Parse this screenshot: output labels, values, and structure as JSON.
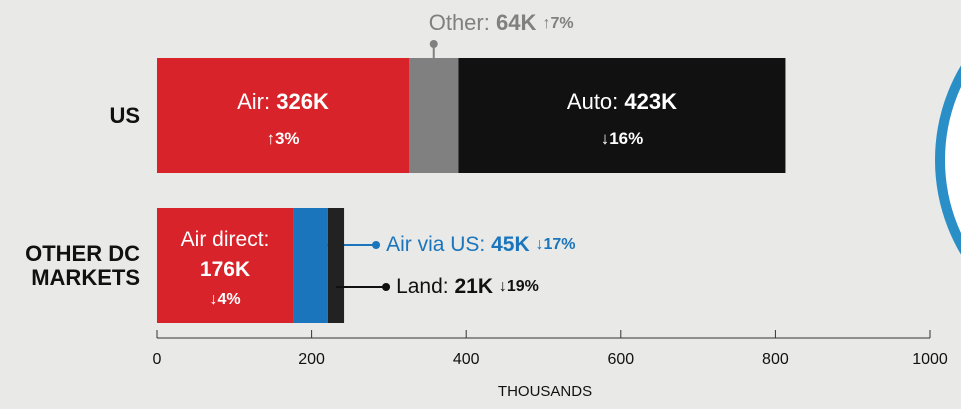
{
  "chart_data": {
    "type": "stacked_bar",
    "bars": [
      {
        "category": "US",
        "segments": [
          {
            "name": "Air:",
            "value": 326,
            "value_label": "326K",
            "change": "↑3%",
            "color": "#d8232a",
            "placement": "inside"
          },
          {
            "name": "Other:",
            "value": 64,
            "value_label": "64K",
            "change": "↑7%",
            "color": "#808080",
            "placement": "above"
          },
          {
            "name": "Auto:",
            "value": 423,
            "value_label": "423K",
            "change": "↓16%",
            "color": "#111111",
            "placement": "inside"
          }
        ]
      },
      {
        "category": "OTHER DC MARKETS",
        "segments": [
          {
            "name": "Air direct:",
            "value": 176,
            "value_label": "176K",
            "change": "↓4%",
            "color": "#d8232a",
            "placement": "inside"
          },
          {
            "name": "Air via US:",
            "value": 45,
            "value_label": "45K",
            "change": "↓17%",
            "color": "#1a75bc",
            "placement": "right"
          },
          {
            "name": "Land:",
            "value": 21,
            "value_label": "21K",
            "change": "↓19%",
            "color": "#222222",
            "placement": "right"
          }
        ]
      }
    ],
    "xlim": [
      0,
      1000
    ],
    "xticks": [
      0,
      200,
      400,
      600,
      800,
      1000
    ],
    "xlabel": "THOUSANDS"
  }
}
